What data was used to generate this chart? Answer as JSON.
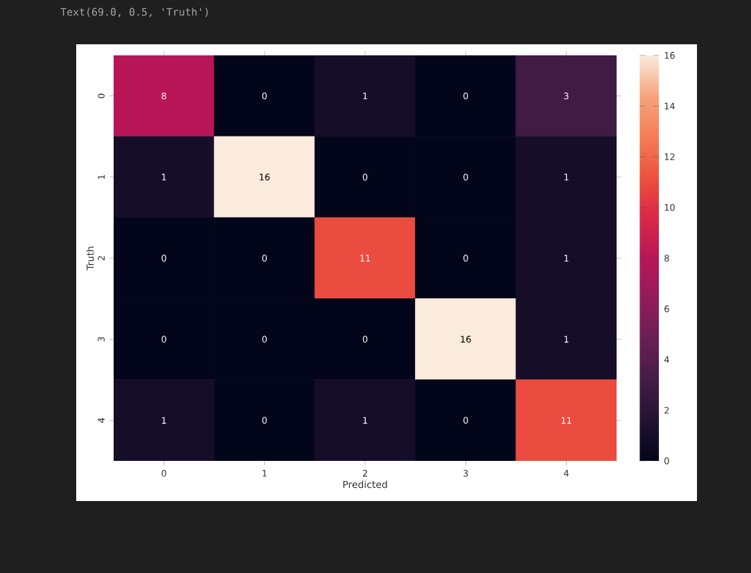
{
  "chart_data": {
    "type": "heatmap",
    "xlabel": "Predicted",
    "ylabel": "Truth",
    "categories": [
      "0",
      "1",
      "2",
      "3",
      "4"
    ],
    "y_categories": [
      "0",
      "1",
      "2",
      "3",
      "4"
    ],
    "cells": [
      [
        8,
        0,
        1,
        0,
        3
      ],
      [
        1,
        16,
        0,
        0,
        1
      ],
      [
        0,
        0,
        11,
        0,
        1
      ],
      [
        0,
        0,
        0,
        16,
        1
      ],
      [
        1,
        0,
        1,
        0,
        11
      ]
    ],
    "clim": [
      0,
      16
    ],
    "cticks": [
      0,
      2,
      4,
      6,
      8,
      10,
      12,
      14,
      16
    ],
    "data_labels": true,
    "annotations": [
      "Text(69.0, 0.5, 'Truth')"
    ]
  }
}
